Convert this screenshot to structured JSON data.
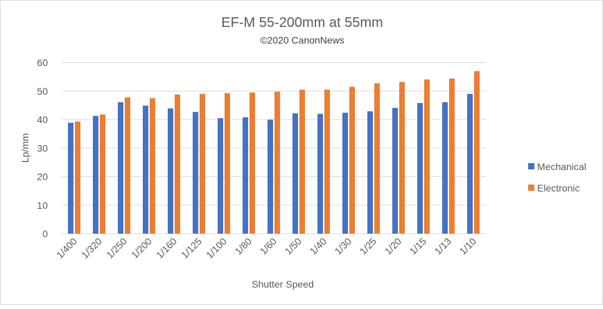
{
  "chart_data": {
    "type": "bar",
    "title": "EF-M 55-200mm at 55mm",
    "subtitle": "©2020 CanonNews",
    "xlabel": "Shutter Speed",
    "ylabel": "Lp/mm",
    "ylim": [
      0,
      60
    ],
    "yticks": [
      "0",
      "10",
      "20",
      "30",
      "40",
      "50",
      "60"
    ],
    "grid": true,
    "legend_position": "right",
    "categories": [
      "1/400",
      "1/320",
      "1/250",
      "1/200",
      "1/160",
      "1/125",
      "1/100",
      "1/80",
      "1/60",
      "1/50",
      "1/40",
      "1/30",
      "1/25",
      "1/20",
      "1/15",
      "1/13",
      "1/10"
    ],
    "series": [
      {
        "name": "Mechanical",
        "color": "#4472c4",
        "values": [
          38.9,
          41.3,
          46.1,
          44.9,
          43.9,
          42.7,
          40.5,
          40.8,
          40.0,
          42.2,
          42.0,
          42.4,
          42.9,
          44.1,
          45.8,
          46.1,
          49.0
        ]
      },
      {
        "name": "Electronic",
        "color": "#ed7d31",
        "values": [
          39.3,
          41.8,
          47.8,
          47.5,
          48.8,
          49.0,
          49.3,
          49.5,
          49.8,
          50.5,
          50.5,
          51.5,
          52.7,
          53.2,
          54.1,
          54.4,
          57.0
        ]
      }
    ]
  }
}
